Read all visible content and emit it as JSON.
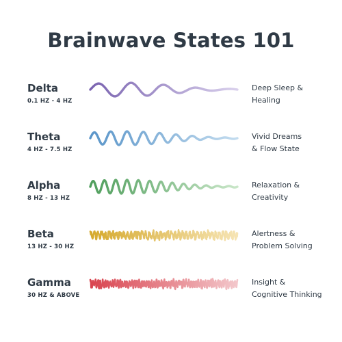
{
  "title": "Brainwave States 101",
  "states": [
    {
      "name": "Delta",
      "range": "0.1 HZ - 4 HZ",
      "desc1": "Deep Sleep &",
      "desc2": "Healing",
      "color_start": "#7a63b0",
      "color_end": "#d9d0ec",
      "cycles": 4.5,
      "noise": 0
    },
    {
      "name": "Theta",
      "range": "4 HZ - 7.5 HZ",
      "desc1": "Vivid Dreams",
      "desc2": "& Flow State",
      "color_start": "#5a95c9",
      "color_end": "#c3dcef",
      "cycles": 9,
      "noise": 0
    },
    {
      "name": "Alpha",
      "range": "8 HZ - 13 HZ",
      "desc1": "Relaxation &",
      "desc2": "Creativity",
      "color_start": "#4f9e5c",
      "color_end": "#c9e6c8",
      "cycles": 13,
      "noise": 0
    },
    {
      "name": "Beta",
      "range": "13 HZ - 30 HZ",
      "desc1": "Alertness &",
      "desc2": "Problem Solving",
      "color_start": "#d6aa2e",
      "color_end": "#f6e4b4",
      "cycles": 40,
      "noise": 1
    },
    {
      "name": "Gamma",
      "range": "30 HZ & ABOVE",
      "desc1": "Insight &",
      "desc2": "Cognitive Thinking",
      "color_start": "#d9444f",
      "color_end": "#f3c7cb",
      "cycles": 60,
      "noise": 1
    }
  ]
}
